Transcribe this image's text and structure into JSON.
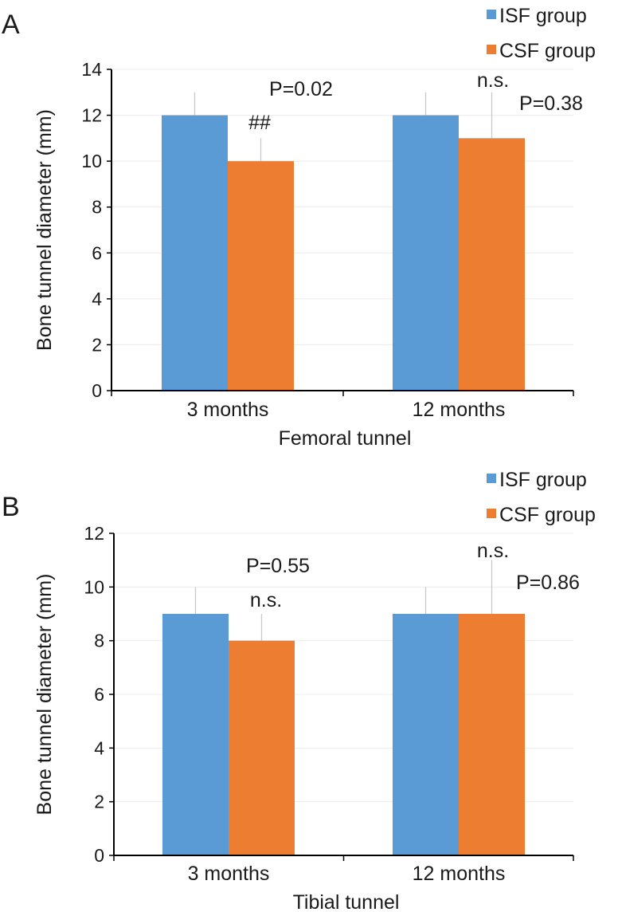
{
  "chart_data": [
    {
      "type": "bar",
      "panel_label": "A",
      "title": "",
      "xlabel": "Femoral tunnel",
      "ylabel": "Bone tunnel diameter (mm)",
      "categories": [
        "3 months",
        "12 months"
      ],
      "ylim": [
        0,
        14
      ],
      "yticks": [
        0,
        2,
        4,
        6,
        8,
        10,
        12,
        14
      ],
      "gridlines": true,
      "legend_position": "top-right",
      "series": [
        {
          "name": "ISF group",
          "color": "#5b9bd5",
          "values": [
            12,
            12
          ],
          "error_upper": [
            13,
            13
          ]
        },
        {
          "name": "CSF group",
          "color": "#ed7d31",
          "values": [
            10,
            11
          ],
          "error_upper": [
            11,
            13
          ]
        }
      ],
      "annotations": [
        {
          "text": "P=0.02",
          "category": 0
        },
        {
          "text": "##",
          "category": 0
        },
        {
          "text": "n.s.",
          "category": 1
        },
        {
          "text": "P=0.38",
          "category": 1
        }
      ]
    },
    {
      "type": "bar",
      "panel_label": "B",
      "title": "",
      "xlabel": "Tibial tunnel",
      "ylabel": "Bone tunnel diameter (mm)",
      "categories": [
        "3 months",
        "12 months"
      ],
      "ylim": [
        0,
        12
      ],
      "yticks": [
        0,
        2,
        4,
        6,
        8,
        10,
        12
      ],
      "gridlines": true,
      "legend_position": "top-right",
      "series": [
        {
          "name": "ISF group",
          "color": "#5b9bd5",
          "values": [
            9,
            9
          ],
          "error_upper": [
            10,
            10
          ]
        },
        {
          "name": "CSF group",
          "color": "#ed7d31",
          "values": [
            8,
            9
          ],
          "error_upper": [
            9,
            11
          ]
        }
      ],
      "annotations": [
        {
          "text": "P=0.55",
          "category": 0
        },
        {
          "text": "n.s.",
          "category": 0
        },
        {
          "text": "n.s.",
          "category": 1
        },
        {
          "text": "P=0.86",
          "category": 1
        }
      ]
    }
  ]
}
